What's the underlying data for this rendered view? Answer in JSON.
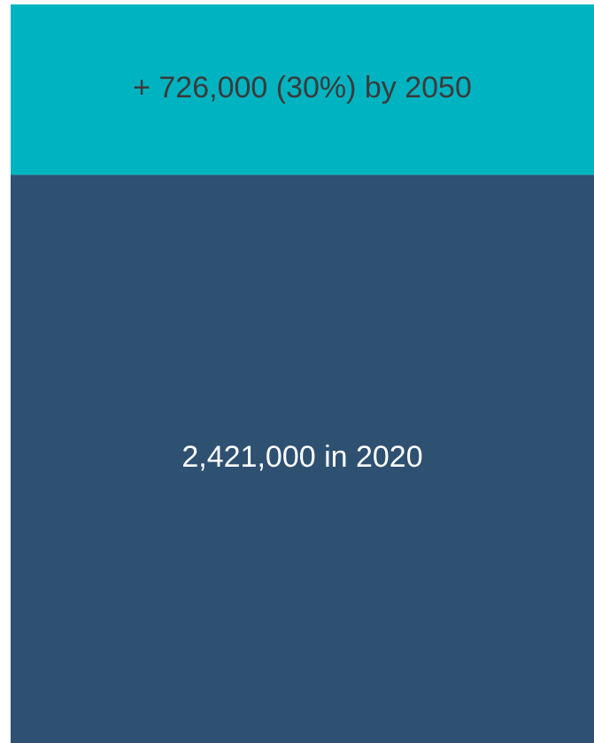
{
  "chart_data": {
    "type": "bar",
    "stacked": true,
    "series": [
      {
        "color": "#2e5071",
        "label_color": "#ffffff",
        "values": [
          2421000
        ],
        "value_labels": [
          "2,421,000 in 2020"
        ]
      },
      {
        "color": "#00b3c1",
        "label_color": "#3b3b3b",
        "values": [
          726000
        ],
        "value_labels": [
          "+ 726,000 (30%) by 2050"
        ]
      }
    ],
    "ylim": [
      0,
      3147000
    ]
  }
}
